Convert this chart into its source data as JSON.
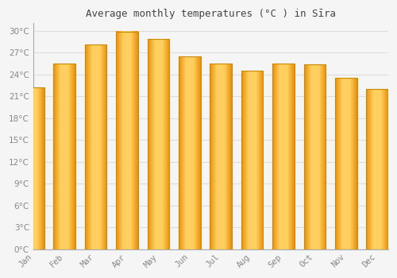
{
  "title": "Average monthly temperatures (°C ) in Sīra",
  "months": [
    "Jan",
    "Feb",
    "Mar",
    "Apr",
    "May",
    "Jun",
    "Jul",
    "Aug",
    "Sep",
    "Oct",
    "Nov",
    "Dec"
  ],
  "values": [
    22.2,
    25.5,
    28.1,
    29.9,
    28.9,
    26.5,
    25.5,
    24.5,
    25.5,
    25.4,
    23.5,
    22.0
  ],
  "bar_color_main": "#FFAA00",
  "bar_color_light": "#FFDD77",
  "bar_edge_color": "#CC8800",
  "background_color": "#F5F5F5",
  "plot_bg_color": "#F5F5F5",
  "grid_color": "#DDDDDD",
  "tick_label_color": "#888888",
  "title_color": "#444444",
  "ylim": [
    0,
    31
  ],
  "ytick_values": [
    0,
    3,
    6,
    9,
    12,
    15,
    18,
    21,
    24,
    27,
    30
  ],
  "bar_width": 0.7,
  "figsize": [
    5.0,
    3.5
  ],
  "dpi": 100
}
